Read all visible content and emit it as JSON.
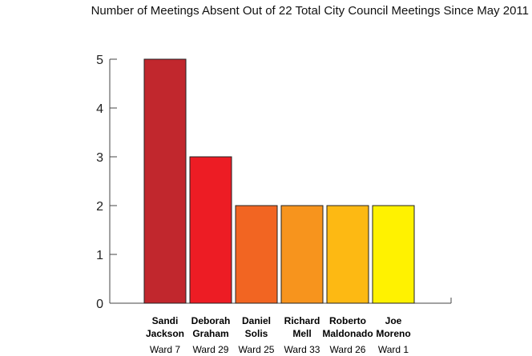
{
  "chart_data": {
    "type": "bar",
    "title": "Number of Meetings Absent Out of 22 Total City Council Meetings Since May 2011",
    "categories": [
      {
        "first": "Sandi",
        "last": "Jackson",
        "ward": "Ward 7"
      },
      {
        "first": "Deborah",
        "last": "Graham",
        "ward": "Ward 29"
      },
      {
        "first": "Daniel",
        "last": "Solis",
        "ward": "Ward 25"
      },
      {
        "first": "Richard",
        "last": "Mell",
        "ward": "Ward 33"
      },
      {
        "first": "Roberto",
        "last": "Maldonado",
        "ward": "Ward 26"
      },
      {
        "first": "Joe",
        "last": "Moreno",
        "ward": "Ward 1"
      }
    ],
    "values": [
      5,
      3,
      2,
      2,
      2,
      2
    ],
    "colors": [
      "#c1272d",
      "#ed1c24",
      "#f26522",
      "#f7941d",
      "#fdb913",
      "#fff200"
    ],
    "ylim": [
      0,
      5
    ],
    "yticks": [
      "0",
      "1",
      "2",
      "3",
      "4",
      "5"
    ],
    "xlabel": "",
    "ylabel": "",
    "grid": false
  }
}
